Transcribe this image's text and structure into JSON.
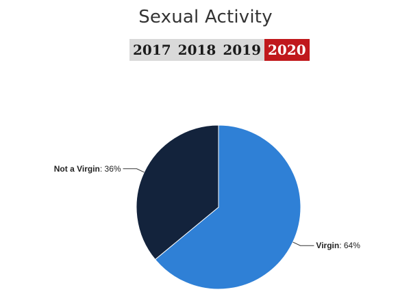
{
  "page": {
    "title": "Sexual Activity"
  },
  "year_tabs": [
    {
      "label": "2017",
      "active": false
    },
    {
      "label": "2018",
      "active": false
    },
    {
      "label": "2019",
      "active": false
    },
    {
      "label": "2020",
      "active": true
    }
  ],
  "colors": {
    "tab_active": "#c0181c",
    "tab_inactive": "#d9d9d9",
    "slice_virgin": "#2f80d6",
    "slice_not_virgin": "#13233c"
  },
  "chart_data": {
    "type": "pie",
    "title": "",
    "slices": [
      {
        "name": "Virgin",
        "value": 64,
        "value_label": "64%",
        "color": "#2f80d6"
      },
      {
        "name": "Not a Virgin",
        "value": 36,
        "value_label": "36%",
        "color": "#13233c"
      }
    ]
  }
}
